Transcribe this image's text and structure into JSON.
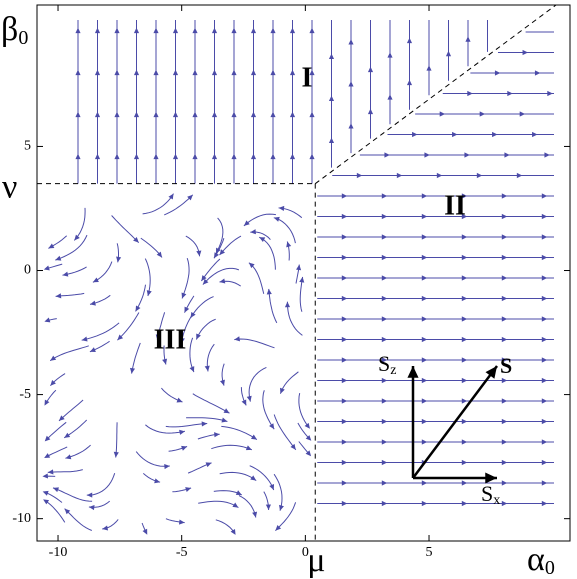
{
  "chart_data": {
    "type": "streamplot",
    "xlim": [
      -10.85,
      10.7
    ],
    "ylim": [
      -10.9,
      10.7
    ],
    "xticks": [
      -10,
      -5,
      0,
      5
    ],
    "yticks": [
      -10,
      -5,
      0,
      5
    ],
    "x_label": {
      "main": "α",
      "sub": "0"
    },
    "y_label": {
      "main": "β",
      "sub": "0"
    },
    "thresholds": [
      {
        "label": "ν",
        "axis": "y",
        "value": 3.5
      },
      {
        "label": "μ",
        "axis": "x",
        "value": 0.4
      }
    ],
    "regions": [
      "I",
      "II",
      "III"
    ],
    "vector_labels": {
      "sz": {
        "main": "S",
        "sub": "z"
      },
      "s": "S⃗",
      "sx": {
        "main": "S",
        "sub": "x"
      }
    },
    "color": "#4b4ba8"
  }
}
